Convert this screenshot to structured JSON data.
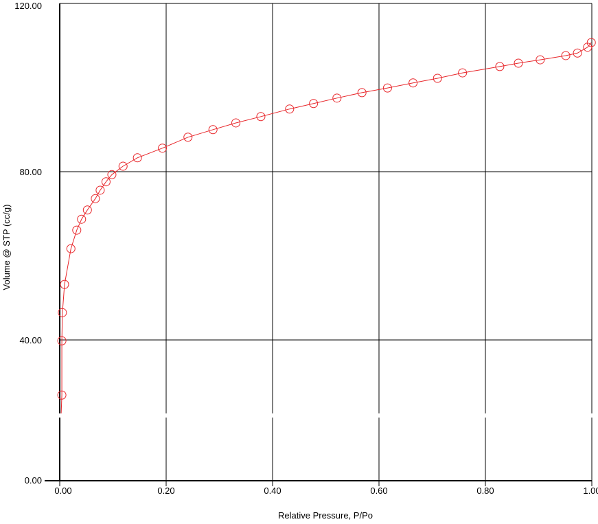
{
  "chart_data": {
    "type": "scatter",
    "xlabel": "Relative Pressure, P/Po",
    "ylabel": "Volume @ STP (cc/g)",
    "xlim": [
      0,
      1.0
    ],
    "ylim": [
      0,
      120
    ],
    "x_ticks": [
      "0.00",
      "0.20",
      "0.40",
      "0.60",
      "0.80",
      "1.00"
    ],
    "y_ticks": [
      "0.00",
      "40.00",
      "80.00",
      "120.00"
    ],
    "grid": true,
    "y_axis_break": true,
    "series_color": "#e8262a",
    "marker": "open-circle",
    "connected": true,
    "points": [
      [
        0.004,
        26.9
      ],
      [
        0.004,
        39.8
      ],
      [
        0.005,
        46.5
      ],
      [
        0.009,
        53.2
      ],
      [
        0.021,
        61.7
      ],
      [
        0.032,
        66.1
      ],
      [
        0.041,
        68.7
      ],
      [
        0.052,
        70.9
      ],
      [
        0.067,
        73.6
      ],
      [
        0.076,
        75.6
      ],
      [
        0.087,
        77.6
      ],
      [
        0.098,
        79.3
      ],
      [
        0.119,
        81.3
      ],
      [
        0.146,
        83.3
      ],
      [
        0.193,
        85.6
      ],
      [
        0.241,
        88.2
      ],
      [
        0.288,
        90.0
      ],
      [
        0.331,
        91.6
      ],
      [
        0.378,
        93.1
      ],
      [
        0.432,
        94.9
      ],
      [
        0.477,
        96.2
      ],
      [
        0.521,
        97.5
      ],
      [
        0.568,
        98.8
      ],
      [
        0.616,
        99.9
      ],
      [
        0.664,
        101.1
      ],
      [
        0.71,
        102.2
      ],
      [
        0.757,
        103.5
      ],
      [
        0.827,
        105.0
      ],
      [
        0.862,
        105.8
      ],
      [
        0.903,
        106.6
      ],
      [
        0.951,
        107.6
      ],
      [
        0.973,
        108.2
      ],
      [
        0.992,
        109.6
      ],
      [
        0.999,
        110.7
      ]
    ]
  }
}
